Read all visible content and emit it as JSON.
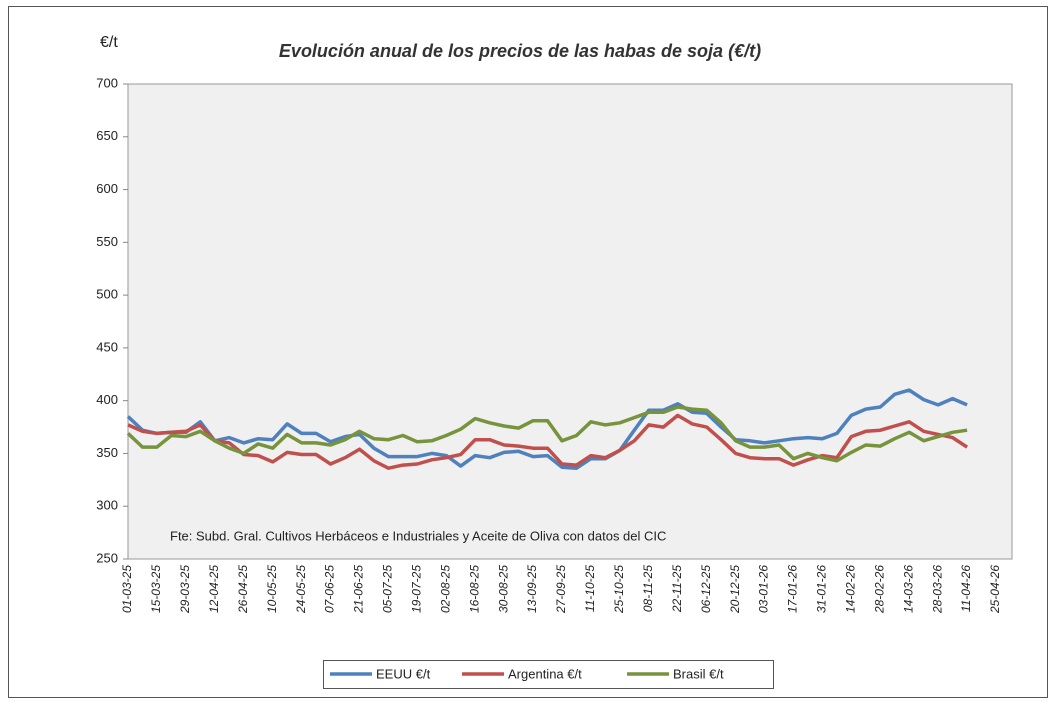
{
  "chart_data": {
    "type": "line",
    "title": "Evolución anual de los precios de las habas de soja (€/t)",
    "y_label": "€/t",
    "annotation": "Fte: Subd. Gral. Cultivos Herbáceos e Industriales y Aceite de Oliva con datos del CIC",
    "categories": [
      "01-03-25",
      null,
      "15-03-25",
      null,
      "29-03-25",
      null,
      "12-04-25",
      null,
      "26-04-25",
      null,
      "10-05-25",
      null,
      "24-05-25",
      null,
      "07-06-25",
      null,
      "21-06-25",
      null,
      "05-07-25",
      null,
      "19-07-25",
      null,
      "02-08-25",
      null,
      "16-08-25",
      null,
      "30-08-25",
      null,
      "13-09-25",
      null,
      "27-09-25",
      null,
      "11-10-25",
      null,
      "25-10-25",
      null,
      "08-11-25",
      null,
      "22-11-25",
      null,
      "06-12-25",
      null,
      "20-12-25",
      null,
      "03-01-26",
      null,
      "17-01-26",
      null,
      "31-01-26",
      null,
      "14-02-26",
      null,
      "28-02-26",
      null,
      "14-03-26",
      null,
      "28-03-26",
      null,
      "11-04-26",
      null,
      "25-04-26"
    ],
    "series": [
      {
        "name": "EEUU €/t",
        "color": "#4f81bd",
        "values": [
          385,
          372,
          369,
          370,
          370,
          380,
          362,
          365,
          360,
          364,
          363,
          378,
          369,
          369,
          361,
          366,
          368,
          355,
          347,
          347,
          347,
          350,
          348,
          338,
          348,
          346,
          351,
          352,
          347,
          348,
          337,
          336,
          345,
          345,
          353,
          372,
          391,
          391,
          397,
          389,
          388,
          375,
          363,
          362,
          360,
          362,
          364,
          365,
          364,
          369,
          386,
          392,
          394,
          406,
          410,
          401,
          396,
          402,
          396,
          null,
          null
        ]
      },
      {
        "name": "Argentina €/t",
        "color": "#c0504d",
        "values": [
          377,
          371,
          369,
          370,
          371,
          377,
          362,
          360,
          349,
          348,
          342,
          351,
          349,
          349,
          340,
          346,
          354,
          343,
          336,
          339,
          340,
          344,
          346,
          349,
          363,
          363,
          358,
          357,
          355,
          355,
          340,
          339,
          348,
          346,
          353,
          362,
          377,
          375,
          386,
          378,
          375,
          363,
          350,
          346,
          345,
          345,
          339,
          344,
          348,
          346,
          366,
          371,
          372,
          376,
          380,
          371,
          368,
          365,
          356,
          null,
          null
        ]
      },
      {
        "name": "Brasil €/t",
        "color": "#77933c",
        "values": [
          369,
          356,
          356,
          367,
          366,
          371,
          362,
          355,
          350,
          359,
          355,
          368,
          360,
          360,
          358,
          363,
          371,
          364,
          363,
          367,
          361,
          362,
          367,
          373,
          383,
          379,
          376,
          374,
          381,
          381,
          362,
          367,
          380,
          377,
          379,
          384,
          389,
          389,
          394,
          392,
          391,
          379,
          362,
          356,
          356,
          358,
          345,
          350,
          346,
          343,
          351,
          358,
          357,
          364,
          370,
          362,
          366,
          370,
          372,
          null,
          null
        ]
      }
    ],
    "ylim": [
      250,
      700
    ],
    "yticks": [
      250,
      300,
      350,
      400,
      450,
      500,
      550,
      600,
      650,
      700
    ],
    "grid": false,
    "legend": "bottom"
  }
}
